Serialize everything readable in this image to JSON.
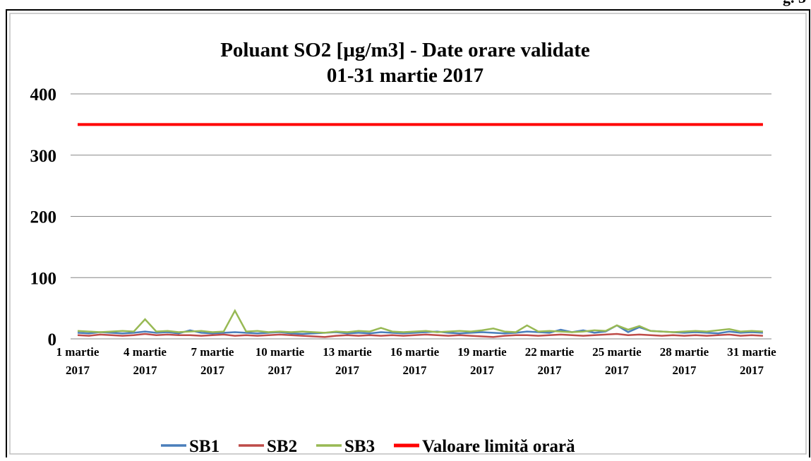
{
  "corner_text": "g. 3",
  "chart_data": {
    "type": "line",
    "title": "Poluant SO2 [µg/m3] - Date orare validate",
    "subtitle": "01-31 martie 2017",
    "categories": [
      "1 martie 2017",
      null,
      null,
      null,
      null,
      null,
      "4 martie 2017",
      null,
      null,
      null,
      null,
      null,
      "7 martie 2017",
      null,
      null,
      null,
      null,
      null,
      "10 martie 2017",
      null,
      null,
      null,
      null,
      null,
      "13 martie 2017",
      null,
      null,
      null,
      null,
      null,
      "16 martie 2017",
      null,
      null,
      null,
      null,
      null,
      "19 martie 2017",
      null,
      null,
      null,
      null,
      null,
      "22 martie 2017",
      null,
      null,
      null,
      null,
      null,
      "25 martie 2017",
      null,
      null,
      null,
      null,
      null,
      "28 martie 2017",
      null,
      null,
      null,
      null,
      null,
      "31 martie 2017",
      null
    ],
    "series": [
      {
        "name": "SB1",
        "color": "#4a7ebb",
        "values": [
          10,
          9,
          11,
          10,
          9,
          10,
          12,
          10,
          11,
          9,
          14,
          10,
          9,
          10,
          11,
          10,
          9,
          10,
          11,
          9,
          8,
          9,
          10,
          11,
          9,
          10,
          9,
          11,
          10,
          9,
          10,
          11,
          12,
          10,
          9,
          10,
          11,
          10,
          9,
          10,
          12,
          11,
          10,
          15,
          11,
          14,
          10,
          12,
          22,
          11,
          19,
          13,
          12,
          11,
          10,
          11,
          10,
          9,
          12,
          10,
          11,
          10
        ]
      },
      {
        "name": "SB2",
        "color": "#be4b48",
        "values": [
          6,
          5,
          7,
          6,
          5,
          6,
          8,
          6,
          7,
          6,
          6,
          5,
          6,
          7,
          5,
          6,
          5,
          6,
          7,
          6,
          5,
          4,
          3,
          5,
          6,
          5,
          6,
          5,
          6,
          5,
          6,
          7,
          6,
          5,
          6,
          5,
          4,
          3,
          5,
          6,
          6,
          5,
          6,
          7,
          6,
          5,
          6,
          7,
          8,
          6,
          7,
          6,
          5,
          6,
          5,
          6,
          5,
          6,
          7,
          5,
          6,
          5
        ]
      },
      {
        "name": "SB3",
        "color": "#98b954",
        "values": [
          13,
          12,
          11,
          12,
          13,
          12,
          32,
          12,
          13,
          11,
          12,
          13,
          11,
          12,
          46,
          12,
          13,
          11,
          12,
          11,
          12,
          11,
          10,
          12,
          11,
          13,
          12,
          18,
          12,
          11,
          12,
          13,
          11,
          12,
          13,
          12,
          14,
          17,
          12,
          11,
          22,
          12,
          13,
          12,
          11,
          12,
          14,
          13,
          22,
          15,
          21,
          13,
          12,
          11,
          12,
          13,
          12,
          14,
          16,
          12,
          13,
          12
        ]
      },
      {
        "name": "Valoare limită orară",
        "color": "#ff0000",
        "values": [
          350,
          350,
          350,
          350,
          350,
          350,
          350,
          350,
          350,
          350,
          350,
          350,
          350,
          350,
          350,
          350,
          350,
          350,
          350,
          350,
          350,
          350,
          350,
          350,
          350,
          350,
          350,
          350,
          350,
          350,
          350,
          350,
          350,
          350,
          350,
          350,
          350,
          350,
          350,
          350,
          350,
          350,
          350,
          350,
          350,
          350,
          350,
          350,
          350,
          350,
          350,
          350,
          350,
          350,
          350,
          350,
          350,
          350,
          350,
          350,
          350,
          350
        ]
      }
    ],
    "ylim": [
      0,
      400
    ],
    "yticks": [
      0,
      100,
      200,
      300,
      400
    ],
    "grid": true,
    "legend": "bottom"
  }
}
